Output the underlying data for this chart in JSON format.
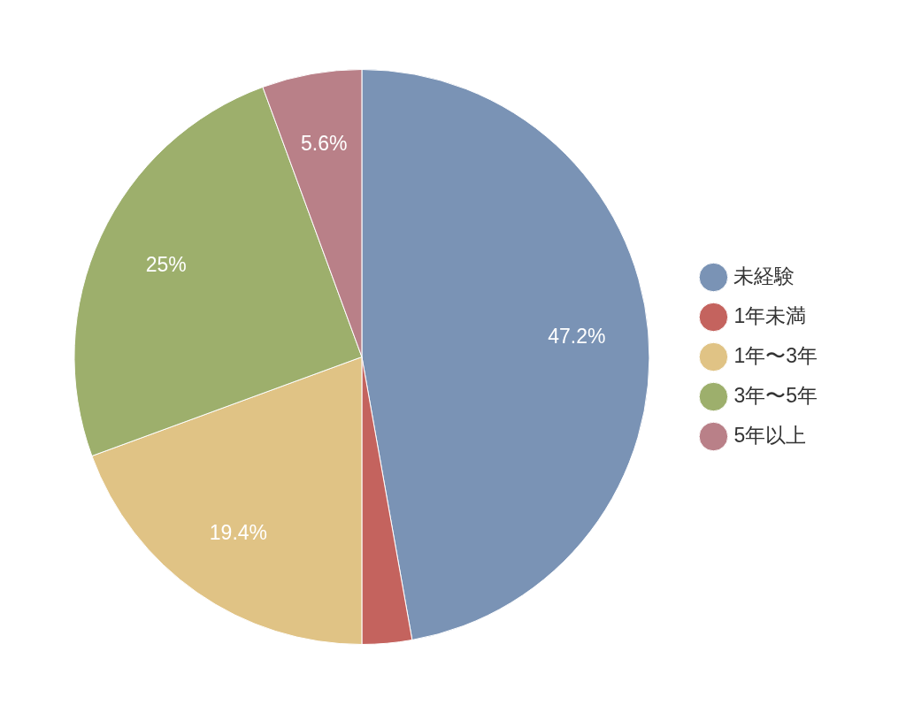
{
  "chart_data": {
    "type": "pie",
    "categories": [
      "未経験",
      "1年未満",
      "1年〜3年",
      "3年〜5年",
      "5年以上"
    ],
    "values": [
      47.2,
      2.8,
      19.4,
      25,
      5.6
    ],
    "colors": [
      "#7a93b5",
      "#c4635e",
      "#e0c385",
      "#9daf6c",
      "#b98088"
    ],
    "value_labels": [
      "47.2%",
      null,
      "19.4%",
      "25%",
      "5.6%"
    ],
    "legend": "right"
  }
}
